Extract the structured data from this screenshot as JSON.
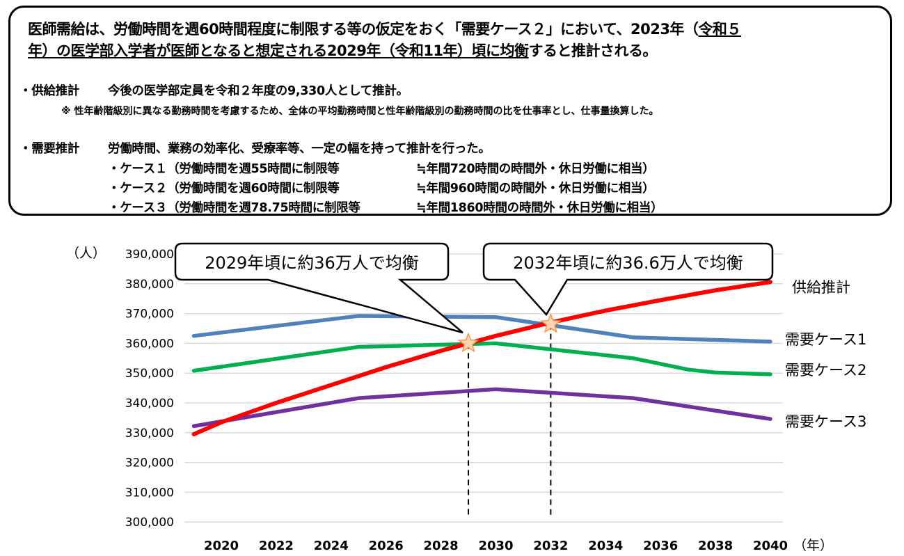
{
  "summary": {
    "line1_plain": "医師需給は、労働時間を週60時間程度に制限する等の仮定をおく「需要ケース２」において、2023年（",
    "line1_underlined": "令和５",
    "line2_underlined": "年）の医学部入学者が医師となると想定される2029年（令和11年）頃に均衡",
    "line2_plain": "すると推計される。",
    "supply_label": "・供給推計",
    "supply_text": "今後の医学部定員を令和２年度の9,330人として推計。",
    "supply_note": "※  性年齢階級別に異なる勤務時間を考慮するため、全体の平均勤務時間と性年齢階級別の勤務時間の比を仕事率とし、仕事量換算した。",
    "demand_label": "・需要推計",
    "demand_text": "労働時間、業務の効率化、受療率等、一定の幅を持って推計を行った。",
    "cases": [
      {
        "left": "・ケース１（労働時間を週55時間に制限等",
        "right": "≒年間720時間の時間外・休日労働に相当）"
      },
      {
        "left": "・ケース２（労働時間を週60時間に制限等",
        "right": "≒年間960時間の時間外・休日労働に相当）"
      },
      {
        "left": "・ケース３（労働時間を週78.75時間に制限等",
        "right": "≒年間1860時間の時間外・休日労働に相当）"
      }
    ]
  },
  "chart_data": {
    "type": "line",
    "ylabel": "（人）",
    "xlabel": "（年）",
    "ylim": [
      300000,
      390000
    ],
    "xlim": [
      2019,
      2040.5
    ],
    "yticks": [
      300000,
      310000,
      320000,
      330000,
      340000,
      350000,
      360000,
      370000,
      380000,
      390000
    ],
    "ytick_labels": [
      "300,000",
      "310,000",
      "320,000",
      "330,000",
      "340,000",
      "350,000",
      "360,000",
      "370,000",
      "380,000",
      "390,000"
    ],
    "xticks": [
      2020,
      2022,
      2024,
      2026,
      2028,
      2030,
      2032,
      2034,
      2036,
      2038,
      2040
    ],
    "grid": true,
    "series": [
      {
        "name": "供給推計",
        "color": "#FF0000",
        "x": [
          2019,
          2020,
          2022,
          2024,
          2026,
          2028,
          2030,
          2032,
          2034,
          2036,
          2038,
          2040
        ],
        "y": [
          329500,
          333500,
          340000,
          346000,
          352000,
          357500,
          362500,
          367000,
          371000,
          374500,
          377800,
          380600
        ]
      },
      {
        "name": "需要ケース1",
        "color": "#4F81BD",
        "x": [
          2019,
          2025,
          2030,
          2035,
          2040
        ],
        "y": [
          362500,
          369200,
          368800,
          362000,
          360600
        ]
      },
      {
        "name": "需要ケース2",
        "color": "#00B050",
        "x": [
          2019,
          2025,
          2030,
          2035,
          2037,
          2038,
          2040
        ],
        "y": [
          350800,
          358800,
          360000,
          355000,
          351200,
          350200,
          349600
        ]
      },
      {
        "name": "需要ケース3",
        "color": "#7030A0",
        "x": [
          2019,
          2025,
          2030,
          2035,
          2040
        ],
        "y": [
          332200,
          341600,
          344600,
          341600,
          334600
        ]
      }
    ],
    "annotations": [
      {
        "text": "2029年頃に約36万人で均衡",
        "x": 2029,
        "y": 360000
      },
      {
        "text": "2032年頃に約36.6万人で均衡",
        "x": 2032,
        "y": 366500
      }
    ]
  }
}
